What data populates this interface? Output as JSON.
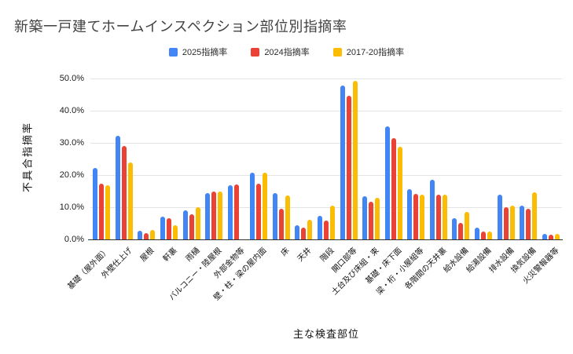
{
  "title": "新築一戸建てホームインスペクション部位別指摘率",
  "chart_data": {
    "type": "bar",
    "title": "新築一戸建てホームインスペクション部位別指摘率",
    "xlabel": "主な検査部位",
    "ylabel": "不具合指摘率",
    "ylim": [
      0,
      50
    ],
    "ytick_step": 10,
    "ytick_labels": [
      "0.0%",
      "10.0%",
      "20.0%",
      "30.0%",
      "40.0%",
      "50.0%"
    ],
    "grid": true,
    "legend_position": "top",
    "categories": [
      "基礎（屋外面）",
      "外壁仕上げ",
      "屋根",
      "軒裏",
      "雨樋",
      "バルコニー・陸屋根",
      "外部金物等",
      "壁・柱・梁の屋内面",
      "床",
      "天井",
      "階段",
      "開口部等",
      "土台及び床組・束",
      "基礎・床下面",
      "梁・桁・小屋組等",
      "各階間の天井裏",
      "給水設備",
      "給湯設備",
      "排水設備",
      "換気設備",
      "火災警報器等"
    ],
    "series": [
      {
        "name": "2025指摘率",
        "color": "#4285F4",
        "values": [
          22.3,
          32.2,
          2.8,
          7.1,
          9.0,
          14.5,
          16.9,
          20.8,
          14.4,
          4.5,
          7.2,
          47.7,
          13.5,
          35.2,
          15.7,
          18.5,
          6.5,
          3.6,
          13.8,
          10.6,
          1.8
        ]
      },
      {
        "name": "2024指摘率",
        "color": "#EA4335",
        "values": [
          17.3,
          29.0,
          2.0,
          6.5,
          7.8,
          14.9,
          17.1,
          17.3,
          9.6,
          3.7,
          5.8,
          44.7,
          11.6,
          31.4,
          14.1,
          13.8,
          5.2,
          2.4,
          10.0,
          9.4,
          1.4
        ]
      },
      {
        "name": "2017-20指摘率",
        "color": "#FBBC04",
        "values": [
          16.8,
          24.0,
          2.9,
          4.4,
          9.9,
          15.0,
          null,
          20.7,
          13.7,
          6.2,
          10.5,
          49.2,
          13.0,
          28.7,
          14.0,
          14.0,
          8.6,
          2.5,
          10.6,
          14.6,
          1.8
        ]
      }
    ]
  }
}
